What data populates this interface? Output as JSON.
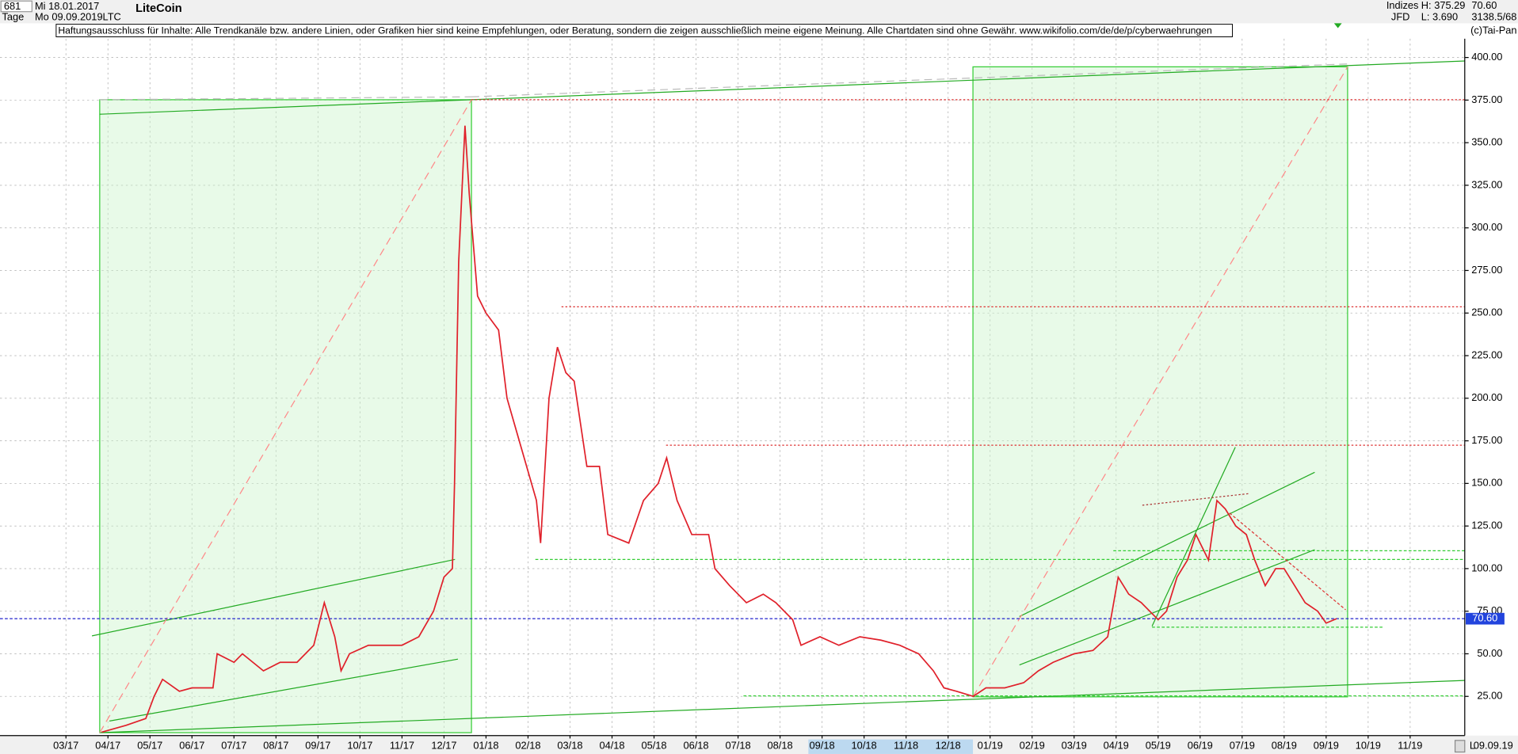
{
  "header": {
    "bars": "681",
    "date_from": "Mi 18.01.2017",
    "period": "Tage",
    "date_to": "Mo 09.09.2019",
    "symbol": "LTC",
    "group": "Indizes",
    "broker": "JFD",
    "high": "H: 375.29",
    "low": "L: 3.690",
    "last": "70.60",
    "info": "3138.5/68",
    "copyright": "(c)Tai-Pan",
    "disclaimer": "Haftungsausschluss für Inhalte: Alle Trendkanäle bzw. andere Linien, oder Grafiken hier sind keine Empfehlungen, oder Beratung, sondern die zeigen ausschließlich meine eigene Meinung. Alle Chartdaten sind ohne Gewähr.  www.wikifolio.com/de/de/p/cyberwaehrungen",
    "end_date": "09.09.19",
    "scale_mode": "L"
  },
  "chart_data": {
    "type": "line",
    "title": "LiteCoin",
    "x": [
      2.85,
      3.43,
      3.9,
      4.1,
      4.3,
      4.7,
      5.0,
      5.5,
      5.6,
      6.0,
      6.2,
      6.7,
      7.1,
      7.5,
      7.9,
      8.15,
      8.4,
      8.55,
      8.75,
      9.2,
      9.5,
      10.0,
      10.4,
      10.75,
      11.0,
      11.2,
      11.25,
      11.35,
      11.5,
      11.6,
      11.8,
      12.0,
      12.3,
      12.5,
      12.85,
      13.2,
      13.3,
      13.5,
      13.7,
      13.9,
      14.1,
      14.4,
      14.7,
      14.9,
      15.4,
      15.75,
      16.1,
      16.3,
      16.55,
      16.9,
      17.3,
      17.45,
      17.8,
      18.2,
      18.6,
      18.9,
      19.3,
      19.5,
      19.95,
      20.4,
      20.9,
      21.4,
      21.85,
      22.3,
      22.65,
      22.9,
      23.2,
      23.6,
      23.9,
      24.35,
      24.8,
      25.15,
      25.5,
      26.0,
      26.45,
      26.8,
      27.05,
      27.3,
      27.6,
      28.0,
      28.2,
      28.45,
      28.7,
      28.9,
      29.2,
      29.4,
      29.6,
      29.85,
      30.1,
      30.3,
      30.55,
      30.8,
      31.0,
      31.25,
      31.5,
      31.8,
      32.0,
      32.25
    ],
    "series": [
      {
        "name": "LTC",
        "color": "#e0202a",
        "values": [
          4,
          8,
          12,
          25,
          35,
          28,
          30,
          30,
          50,
          45,
          50,
          40,
          45,
          45,
          55,
          80,
          60,
          40,
          50,
          55,
          55,
          55,
          60,
          75,
          95,
          100,
          150,
          280,
          360,
          320,
          260,
          250,
          240,
          200,
          170,
          140,
          115,
          200,
          230,
          215,
          210,
          160,
          160,
          120,
          115,
          140,
          150,
          165,
          140,
          120,
          120,
          100,
          90,
          80,
          85,
          80,
          70,
          55,
          60,
          55,
          60,
          58,
          55,
          50,
          40,
          30,
          28,
          25,
          30,
          30,
          33,
          40,
          45,
          50,
          52,
          60,
          95,
          85,
          80,
          70,
          75,
          95,
          105,
          120,
          105,
          140,
          135,
          125,
          120,
          105,
          90,
          100,
          100,
          90,
          80,
          75,
          68,
          70.6
        ]
      }
    ],
    "last_value": 70.6,
    "last_label": "70.60",
    "xlim": [
      0.43,
      35.3
    ],
    "xticks": [
      {
        "value": 2,
        "label": "03/17"
      },
      {
        "value": 3,
        "label": "04/17"
      },
      {
        "value": 4,
        "label": "05/17"
      },
      {
        "value": 5,
        "label": "06/17"
      },
      {
        "value": 6,
        "label": "07/17"
      },
      {
        "value": 7,
        "label": "08/17"
      },
      {
        "value": 8,
        "label": "09/17"
      },
      {
        "value": 9,
        "label": "10/17"
      },
      {
        "value": 10,
        "label": "11/17"
      },
      {
        "value": 11,
        "label": "12/17"
      },
      {
        "value": 12,
        "label": "01/18"
      },
      {
        "value": 13,
        "label": "02/18"
      },
      {
        "value": 14,
        "label": "03/18"
      },
      {
        "value": 15,
        "label": "04/18"
      },
      {
        "value": 16,
        "label": "05/18"
      },
      {
        "value": 17,
        "label": "06/18"
      },
      {
        "value": 18,
        "label": "07/18"
      },
      {
        "value": 19,
        "label": "08/18"
      },
      {
        "value": 20,
        "label": "09/18"
      },
      {
        "value": 21,
        "label": "10/18"
      },
      {
        "value": 22,
        "label": "11/18"
      },
      {
        "value": 23,
        "label": "12/18"
      },
      {
        "value": 24,
        "label": "01/19"
      },
      {
        "value": 25,
        "label": "02/19"
      },
      {
        "value": 26,
        "label": "03/19"
      },
      {
        "value": 27,
        "label": "04/19"
      },
      {
        "value": 28,
        "label": "05/19"
      },
      {
        "value": 29,
        "label": "06/19"
      },
      {
        "value": 30,
        "label": "07/19"
      },
      {
        "value": 31,
        "label": "08/19"
      },
      {
        "value": 32,
        "label": "09/19"
      },
      {
        "value": 33,
        "label": "10/19"
      },
      {
        "value": 34,
        "label": "11/19"
      }
    ],
    "ylim": [
      2,
      411
    ],
    "yticks": [
      {
        "value": 25,
        "label": "25.00"
      },
      {
        "value": 50,
        "label": "50.00"
      },
      {
        "value": 75,
        "label": "75.00"
      },
      {
        "value": 100,
        "label": "100.00"
      },
      {
        "value": 125,
        "label": "125.00"
      },
      {
        "value": 150,
        "label": "150.00"
      },
      {
        "value": 175,
        "label": "175.00"
      },
      {
        "value": 200,
        "label": "200.00"
      },
      {
        "value": 225,
        "label": "225.00"
      },
      {
        "value": 250,
        "label": "250.00"
      },
      {
        "value": 275,
        "label": "275.00"
      },
      {
        "value": 300,
        "label": "300.00"
      },
      {
        "value": 325,
        "label": "325.00"
      },
      {
        "value": 350,
        "label": "350.00"
      },
      {
        "value": 375,
        "label": "375.00"
      },
      {
        "value": 400,
        "label": "400.00"
      }
    ],
    "grid": true
  }
}
